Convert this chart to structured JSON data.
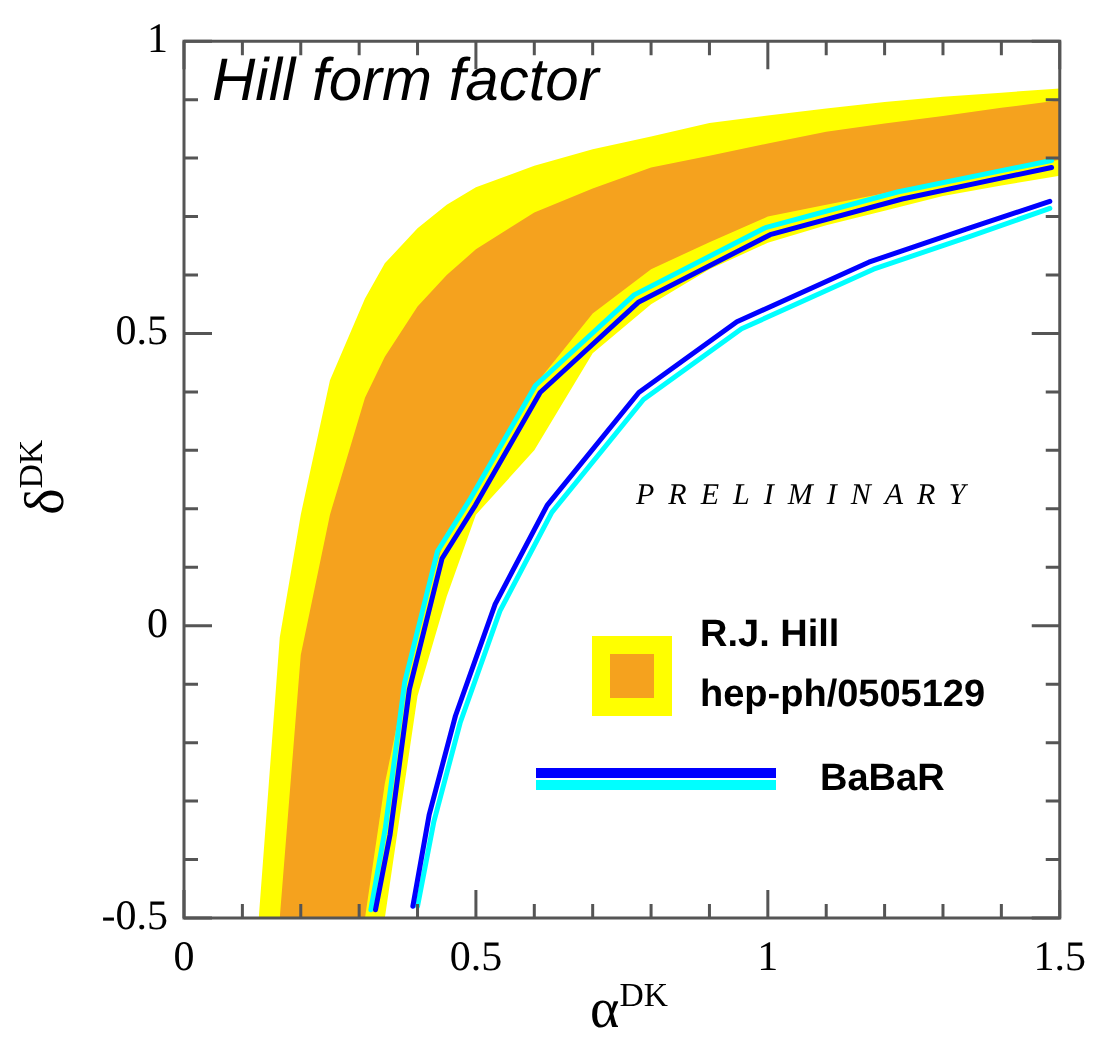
{
  "chart_data": {
    "type": "line",
    "title": "Hill form factor",
    "xlabel": "α$^{DK}$",
    "ylabel": "δ$^{DK}$",
    "xlim": [
      0,
      1.5
    ],
    "ylim": [
      -0.5,
      1
    ],
    "xticks": [
      0,
      {
        "value": 0.1,
        "label": null
      },
      {
        "value": 0.2,
        "label": null
      },
      {
        "value": 0.3,
        "label": null
      },
      {
        "value": 0.4,
        "label": null
      },
      0.5,
      {
        "value": 0.6,
        "label": null
      },
      {
        "value": 0.7,
        "label": null
      },
      {
        "value": 0.8,
        "label": null
      },
      {
        "value": 0.9,
        "label": null
      },
      1,
      {
        "value": 1.1,
        "label": null
      },
      {
        "value": 1.2,
        "label": null
      },
      {
        "value": 1.3,
        "label": null
      },
      {
        "value": 1.4,
        "label": null
      },
      1.5
    ],
    "yticks": [
      -0.5,
      {
        "value": -0.4,
        "label": null
      },
      {
        "value": -0.3,
        "label": null
      },
      {
        "value": -0.2,
        "label": null
      },
      {
        "value": -0.1,
        "label": null
      },
      0,
      {
        "value": 0.1,
        "label": null
      },
      {
        "value": 0.2,
        "label": null
      },
      {
        "value": 0.3,
        "label": null
      },
      {
        "value": 0.4,
        "label": null
      },
      0.5,
      {
        "value": 0.6,
        "label": null
      },
      {
        "value": 0.7,
        "label": null
      },
      {
        "value": 0.8,
        "label": null
      },
      {
        "value": 0.9,
        "label": null
      },
      1
    ],
    "legend": "bottom right",
    "line_style": "solid",
    "annotations": [
      "PRELIMINARY"
    ],
    "series": [
      {
        "color": "#ffff00",
        "x": [
          0.128,
          0.164,
          0.2,
          0.25,
          0.31,
          0.344,
          0.4,
          0.45,
          0.5,
          0.6,
          0.7,
          0.8,
          0.9,
          1.0,
          1.1,
          1.2,
          1.3,
          1.4,
          1.5
        ],
        "values": [
          null,
          null,
          null,
          null,
          null,
          null,
          null,
          null,
          null,
          null,
          null,
          null,
          null,
          null,
          null,
          null,
          null,
          null,
          null
        ],
        "upper": [
          -0.5,
          -0.02,
          0.19,
          0.42,
          0.56,
          0.62,
          0.68,
          0.72,
          0.75,
          0.787,
          0.815,
          0.837,
          0.86,
          0.873,
          0.885,
          0.896,
          0.905,
          0.912,
          0.919
        ],
        "lower": [
          -0.5,
          -0.5,
          -0.5,
          -0.5,
          -0.5,
          -0.5,
          -0.12,
          0.05,
          0.19,
          0.3,
          0.466,
          0.55,
          0.61,
          0.655,
          0.685,
          0.71,
          0.735,
          0.753,
          0.77
        ]
      },
      {
        "name": "R.J. Hill\nhep-ph/0505129",
        "color": "#f5a21e",
        "x": [
          0.164,
          0.2,
          0.25,
          0.31,
          0.344,
          0.4,
          0.45,
          0.5,
          0.6,
          0.7,
          0.8,
          0.9,
          1.0,
          1.1,
          1.2,
          1.3,
          1.4,
          1.5
        ],
        "values": [
          null,
          null,
          null,
          null,
          null,
          null,
          null,
          null,
          null,
          null,
          null,
          null,
          null,
          null,
          null,
          null,
          null,
          null
        ],
        "upper": [
          -0.5,
          -0.05,
          0.19,
          0.39,
          0.46,
          0.546,
          0.6,
          0.644,
          0.707,
          0.748,
          0.784,
          0.804,
          0.825,
          0.845,
          0.859,
          0.872,
          0.886,
          0.899
        ],
        "lower": [
          -0.5,
          -0.5,
          -0.5,
          -0.5,
          -0.27,
          0.0,
          0.16,
          0.23,
          0.41,
          0.534,
          0.61,
          0.656,
          0.7,
          0.72,
          0.74,
          0.76,
          0.778,
          0.797
        ]
      },
      {
        "color": "#00ffff",
        "x": [
          0.32,
          0.345,
          0.378,
          0.434,
          0.491,
          0.602,
          0.771,
          0.996,
          1.222,
          1.486
        ],
        "values": [
          -0.486,
          -0.345,
          -0.097,
          0.127,
          0.218,
          0.411,
          0.566,
          0.681,
          0.742,
          0.796
        ]
      },
      {
        "name": "BaBaR",
        "color": "#0000ff",
        "x": [
          0.328,
          0.353,
          0.386,
          0.442,
          0.499,
          0.61,
          0.779,
          1.004,
          1.23,
          1.486
        ],
        "values": [
          -0.486,
          -0.357,
          -0.109,
          0.115,
          0.206,
          0.399,
          0.554,
          0.669,
          0.73,
          0.784
        ]
      },
      {
        "color": "#00ffff",
        "x": [
          0.4,
          0.428,
          0.473,
          0.541,
          0.63,
          0.787,
          0.955,
          1.181,
          1.349,
          1.483
        ],
        "values": [
          -0.48,
          -0.335,
          -0.166,
          0.025,
          0.194,
          0.387,
          0.508,
          0.61,
          0.667,
          0.714
        ]
      },
      {
        "color": "#0000ff",
        "x": [
          0.392,
          0.42,
          0.465,
          0.533,
          0.622,
          0.779,
          0.947,
          1.173,
          1.341,
          1.483
        ],
        "values": [
          -0.48,
          -0.323,
          -0.154,
          0.037,
          0.206,
          0.399,
          0.52,
          0.622,
          0.679,
          0.726
        ]
      }
    ]
  }
}
